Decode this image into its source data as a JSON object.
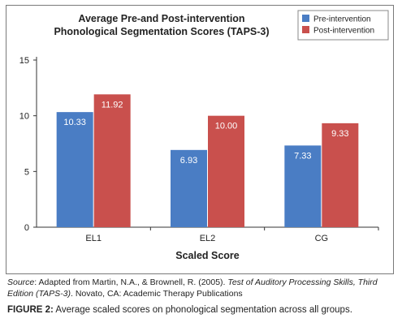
{
  "chart_data": {
    "type": "bar",
    "title_lines": [
      "Average Pre-and Post-intervention",
      "Phonological Segmentation Scores (TAPS-3)"
    ],
    "categories": [
      "EL1",
      "EL2",
      "CG"
    ],
    "series": [
      {
        "name": "Pre-intervention",
        "values": [
          10.33,
          6.93,
          7.33
        ],
        "labels": [
          "10.33",
          "6.93",
          "7.33"
        ],
        "color": "#4a7dc4"
      },
      {
        "name": "Post-intervention",
        "values": [
          11.92,
          10.0,
          9.33
        ],
        "labels": [
          "11.92",
          "10.00",
          "9.33"
        ],
        "color": "#c9504d"
      }
    ],
    "xlabel": "Scaled Score",
    "ylabel": "",
    "ylim": [
      0,
      15
    ],
    "yticks": [
      0,
      5,
      10,
      15
    ],
    "legend_position": "top-right",
    "grid": false
  },
  "source": {
    "label": "Source",
    "text1": ": Adapted from Martin, N.A., & Brownell, R. (2005). ",
    "book": "Test of Auditory Processing Skills, Third Edition (TAPS-3)",
    "text2": ". Novato, CA: Academic Therapy Publications"
  },
  "caption": {
    "label": "FIGURE 2:",
    "text": " Average scaled scores on phonological segmentation across all groups."
  }
}
